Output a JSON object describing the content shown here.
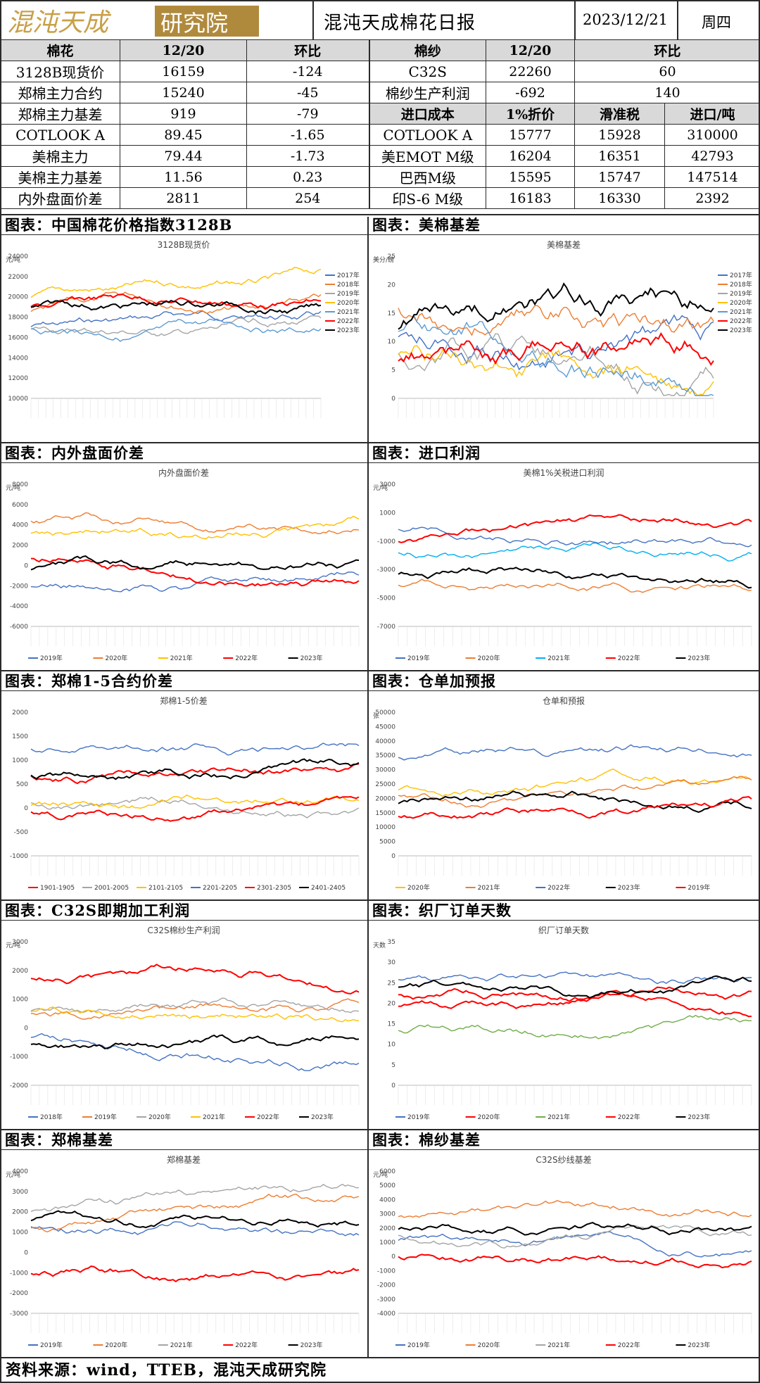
{
  "header": {
    "logo_text": "混沌天成研究院",
    "title": "混沌天成棉花日报",
    "date": "2023/12/21",
    "weekday": "周四"
  },
  "table": {
    "left_header": [
      "棉花",
      "12/20",
      "环比"
    ],
    "left_rows": [
      [
        "3128B现货价",
        "16159",
        "-124"
      ],
      [
        "郑棉主力合约",
        "15240",
        "-45"
      ],
      [
        "郑棉主力基差",
        "919",
        "-79"
      ],
      [
        "COTLOOK A",
        "89.45",
        "-1.65"
      ],
      [
        "美棉主力",
        "79.44",
        "-1.73"
      ],
      [
        "美棉主力基差",
        "11.56",
        "0.23"
      ],
      [
        "内外盘面价差",
        "2811",
        "254"
      ]
    ],
    "right_header": [
      "棉纱",
      "12/20",
      "环比"
    ],
    "right_rows_top": [
      [
        "C32S",
        "22260",
        "60"
      ],
      [
        "棉纱生产利润",
        "-692",
        "140"
      ]
    ],
    "import_header": [
      "进口成本",
      "1%折价",
      "滑准税",
      "进口/吨"
    ],
    "import_rows": [
      [
        "COTLOOK A",
        "15777",
        "15928",
        "310000"
      ],
      [
        "美EMOT M级",
        "16204",
        "16351",
        "42793"
      ],
      [
        "巴西M级",
        "15595",
        "15747",
        "147514"
      ],
      [
        "印S-6 M级",
        "16183",
        "16330",
        "2392"
      ]
    ]
  },
  "colors": {
    "y2017": "#4472c4",
    "y2018": "#ed7d31",
    "y2019": "#a5a5a5",
    "y2020": "#ffc000",
    "y2021": "#5b9bd5",
    "y2022": "#ff0000",
    "y2023": "#000000",
    "green": "#70ad47",
    "skyblue": "#00b0f0"
  },
  "panels": [
    {
      "title": "图表：中国棉花价格指数3128B",
      "chart_title": "3128B现货价",
      "unit": "元/吨",
      "y_ticks": [
        "24000",
        "22000",
        "20000",
        "18000",
        "16000",
        "14000",
        "12000",
        "10000"
      ],
      "legend": [
        "2017年",
        "2018年",
        "2019年",
        "2020年",
        "2021年",
        "2022年",
        "2023年"
      ]
    },
    {
      "title": "图表：美棉基差",
      "chart_title": "美棉基差",
      "unit": "美分/磅",
      "y_ticks": [
        "25",
        "20",
        "15",
        "10",
        "5",
        "0"
      ],
      "legend": [
        "2017年",
        "2018年",
        "2019年",
        "2020年",
        "2021年",
        "2022年",
        "2023年"
      ]
    },
    {
      "title": "图表：内外盘面价差",
      "chart_title": "内外盘面价差",
      "unit": "元/吨",
      "y_ticks": [
        "8000",
        "6000",
        "4000",
        "2000",
        "0",
        "-2000",
        "-4000",
        "-6000"
      ],
      "legend": [
        "2019年",
        "2020年",
        "2021年",
        "2022年",
        "2023年"
      ]
    },
    {
      "title": "图表：进口利润",
      "chart_title": "美棉1%关税进口利润",
      "unit": "元/吨",
      "y_ticks": [
        "3000",
        "1000",
        "-1000",
        "-3000",
        "-5000",
        "-7000"
      ],
      "legend": [
        "2019年",
        "2020年",
        "2021年",
        "2022年",
        "2023年"
      ]
    },
    {
      "title": "图表：郑棉1-5合约价差",
      "chart_title": "郑棉1-5价差",
      "unit": "",
      "y_ticks": [
        "2000",
        "1500",
        "1000",
        "500",
        "0",
        "-500",
        "-1000"
      ],
      "legend": [
        "1901-1905",
        "2001-2005",
        "2101-2105",
        "2201-2205",
        "2301-2305",
        "2401-2405"
      ]
    },
    {
      "title": "图表：仓单加预报",
      "chart_title": "仓单和预报",
      "unit": "张",
      "y_ticks": [
        "50000",
        "45000",
        "40000",
        "35000",
        "30000",
        "25000",
        "20000",
        "15000",
        "10000",
        "5000",
        "0"
      ],
      "legend": [
        "2020年",
        "2021年",
        "2022年",
        "2023年",
        "2019年"
      ]
    },
    {
      "title": "图表：C32S即期加工利润",
      "chart_title": "C32S棉纱生产利润",
      "unit": "元/吨",
      "y_ticks": [
        "3000",
        "2000",
        "1000",
        "0",
        "-1000",
        "-2000"
      ],
      "legend": [
        "2018年",
        "2019年",
        "2020年",
        "2021年",
        "2022年",
        "2023年"
      ]
    },
    {
      "title": "图表：织厂订单天数",
      "chart_title": "织厂订单天数",
      "unit": "天数",
      "y_ticks": [
        "35",
        "30",
        "25",
        "20",
        "15",
        "10",
        "5",
        "0"
      ],
      "legend": [
        "2019年",
        "2020年",
        "2021年",
        "2022年",
        "2023年"
      ]
    },
    {
      "title": "图表：郑棉基差",
      "chart_title": "郑棉基差",
      "unit": "元/吨",
      "y_ticks": [
        "4000",
        "3000",
        "2000",
        "1000",
        "0",
        "-1000",
        "-2000",
        "-3000"
      ],
      "legend": [
        "2019年",
        "2020年",
        "2021年",
        "2022年",
        "2023年"
      ]
    },
    {
      "title": "图表：棉纱基差",
      "chart_title": "C32S纱线基差",
      "unit": "元/吨",
      "y_ticks": [
        "6000",
        "5000",
        "4000",
        "3000",
        "2000",
        "1000",
        "0",
        "-1000",
        "-2000",
        "-3000",
        "-4000"
      ],
      "legend": [
        "2019年",
        "2020年",
        "2021年",
        "2022年",
        "2023年"
      ]
    }
  ],
  "footer": "资料来源：wind，TTEB，混沌天成研究院"
}
